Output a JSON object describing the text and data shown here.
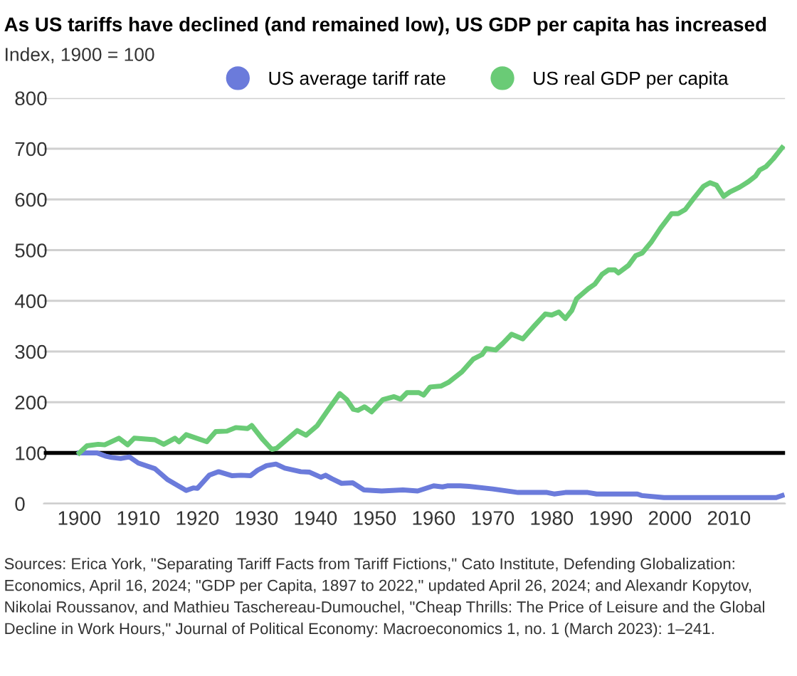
{
  "chart_data": {
    "type": "line",
    "title": "As US tariffs have declined (and remained low), US GDP per capita has increased",
    "subtitle": "Index, 1900 = 100",
    "series": [
      {
        "name": "US average tariff rate",
        "color": "#6b7bdb",
        "x": [
          1900,
          1903,
          1904.4,
          1905.5,
          1907,
          1908.5,
          1910,
          1912.8,
          1915,
          1918.1,
          1919.3,
          1920,
          1922,
          1923.6,
          1925.9,
          1927.4,
          1929,
          1930.2,
          1931.7,
          1933.3,
          1934.8,
          1937.5,
          1939,
          1940.9,
          1941.7,
          1942.8,
          1944.4,
          1946.3,
          1948.2,
          1951.2,
          1954.8,
          1957.3,
          1960,
          1961.5,
          1962.3,
          1964.5,
          1966,
          1970,
          1974.3,
          1979.2,
          1980.4,
          1982.3,
          1986.1,
          1987.6,
          1994.5,
          1995.2,
          1999,
          2018,
          2019
        ],
        "values": [
          100,
          100,
          94,
          91,
          89,
          92,
          80,
          69,
          47,
          26,
          31,
          30,
          56,
          63,
          55,
          56,
          55,
          66,
          75,
          78,
          70,
          63,
          62,
          52,
          56,
          49,
          40,
          41,
          27,
          25,
          27,
          25,
          35,
          33,
          35,
          35,
          34,
          29,
          22,
          22,
          19,
          22,
          22,
          19,
          19,
          16,
          12,
          12,
          16
        ]
      },
      {
        "name": "US real GDP per capita",
        "color": "#6acb76",
        "x": [
          1900,
          1901.3,
          1903.2,
          1904.3,
          1906.7,
          1908.2,
          1909.3,
          1912.8,
          1914.3,
          1916.2,
          1916.9,
          1918.1,
          1921.6,
          1923.1,
          1925,
          1926.5,
          1928.5,
          1929.2,
          1931.1,
          1932.6,
          1933.4,
          1936.9,
          1938.4,
          1940.3,
          1942.2,
          1944.1,
          1945.3,
          1946.4,
          1947.2,
          1948.3,
          1949.5,
          1951.4,
          1953.3,
          1954.4,
          1955.5,
          1957.5,
          1958.3,
          1959.4,
          1961.3,
          1962.5,
          1964.8,
          1966.7,
          1968.2,
          1968.9,
          1970.5,
          1971.7,
          1973.2,
          1975.1,
          1977,
          1978.9,
          1980,
          1981.2,
          1982.3,
          1983.4,
          1984.2,
          1986.2,
          1987.3,
          1988.5,
          1989.6,
          1990.7,
          1991.3,
          1993,
          1994.2,
          1995.3,
          1996.8,
          1998.4,
          2000.3,
          2001.4,
          2002.6,
          2004.1,
          2005.7,
          2006.8,
          2007.9,
          2009.1,
          2010.2,
          2011.8,
          2013.3,
          2014.5,
          2015.2,
          2016.3,
          2017.5,
          2019
        ],
        "values": [
          100,
          114,
          117,
          116,
          129,
          116,
          129,
          126,
          117,
          129,
          122,
          136,
          122,
          142,
          143,
          150,
          148,
          154,
          126,
          107,
          109,
          144,
          135,
          154,
          186,
          217,
          205,
          186,
          184,
          191,
          181,
          205,
          211,
          206,
          219,
          219,
          214,
          230,
          232,
          239,
          260,
          285,
          294,
          306,
          303,
          316,
          334,
          325,
          350,
          374,
          372,
          378,
          365,
          381,
          404,
          424,
          433,
          452,
          461,
          461,
          455,
          470,
          489,
          494,
          515,
          543,
          572,
          572,
          580,
          603,
          626,
          633,
          628,
          606,
          615,
          624,
          635,
          646,
          658,
          665,
          680,
          702
        ]
      }
    ],
    "xlim": [
      1894,
      2019.5
    ],
    "xticks": [
      1900,
      1910,
      1920,
      1930,
      1940,
      1950,
      1960,
      1970,
      1980,
      1990,
      2000,
      2010
    ],
    "ylim": [
      0,
      800
    ],
    "yticks": [
      0,
      100,
      200,
      300,
      400,
      500,
      600,
      700,
      800
    ],
    "grid": "y",
    "legend": "top",
    "marker": "none",
    "line_style": "solid",
    "ref_lines": [
      {
        "axis": "y",
        "value": 100,
        "color": "#000000"
      }
    ],
    "annotations": [
      "Sources: Erica York, \"Separating Tariff Facts from Tariff Fictions,\" Cato Institute, Defending Globalization: Economics, April 16, 2024; \"GDP per Capita, 1897 to 2022,\" updated April 26, 2024; and Alexandr Kopytov, Nikolai Roussanov, and Mathieu Taschereau-Dumouchel, \"Cheap Thrills: The Price of Leisure and the Global Decline in Work Hours,\" Journal of Political Economy: Macroeconomics 1, no. 1 (March 2023): 1–241."
    ]
  }
}
